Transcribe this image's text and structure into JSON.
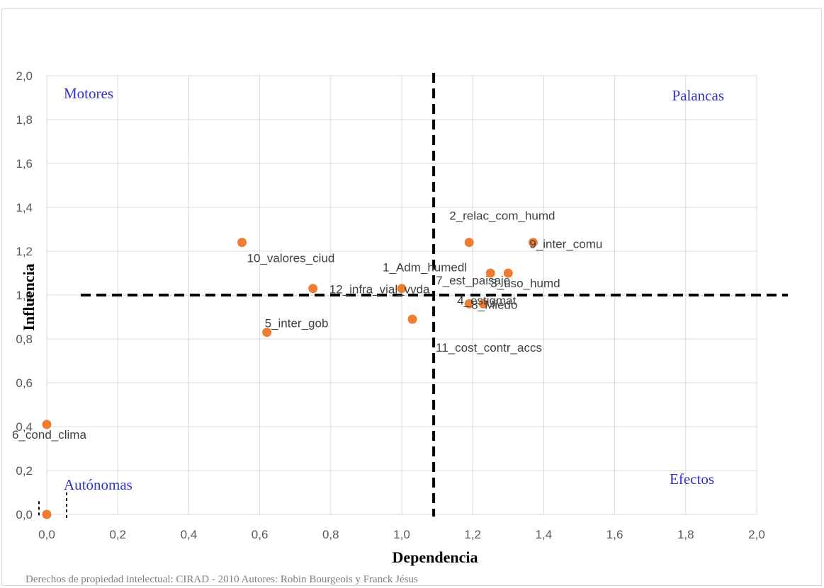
{
  "chart_data": {
    "type": "scatter",
    "xlabel": "Dependencia",
    "ylabel": "Influencia",
    "xlim": [
      0,
      2.0
    ],
    "ylim": [
      0,
      2.0
    ],
    "x_ticks": [
      "0,0",
      "0,2",
      "0,4",
      "0,6",
      "0,8",
      "1,0",
      "1,2",
      "1,4",
      "1,6",
      "1,8",
      "2,0"
    ],
    "y_ticks": [
      "0,0",
      "0,2",
      "0,4",
      "0,6",
      "0,8",
      "1,0",
      "1,2",
      "1,4",
      "1,6",
      "1,8",
      "2,0"
    ],
    "grid": true,
    "marker_color": "#ed7d31",
    "threshold": {
      "x": 1.09,
      "y": 1.0
    },
    "quadrants": {
      "top_left": "Motores",
      "top_right": "Palancas",
      "bottom_left": "Autónomas",
      "bottom_right": "Efectos"
    },
    "points": [
      {
        "label": "1_Adm_humedl",
        "x": 1.0,
        "y": 1.03
      },
      {
        "label": "2_relac_com_humd",
        "x": 1.19,
        "y": 1.24
      },
      {
        "label": "3_uso_humd",
        "x": 1.3,
        "y": 1.1
      },
      {
        "label": "4_estigmat",
        "x": 1.19,
        "y": 0.96
      },
      {
        "label": "5_inter_gob",
        "x": 0.62,
        "y": 0.83
      },
      {
        "label": "6_cond_clima",
        "x": 0.0,
        "y": 0.41
      },
      {
        "label": "7_est_paisaje",
        "x": 1.25,
        "y": 1.1
      },
      {
        "label": "8_Miedo",
        "x": 1.23,
        "y": 0.96
      },
      {
        "label": "9_inter_comu",
        "x": 1.37,
        "y": 1.24
      },
      {
        "label": "10_valores_ciud",
        "x": 0.55,
        "y": 1.24
      },
      {
        "label": "11_cost_contr_accs",
        "x": 1.03,
        "y": 0.89
      },
      {
        "label": "12_infra_vial_vvda",
        "x": 0.75,
        "y": 1.03
      },
      {
        "label": "",
        "x": 0.0,
        "y": 0.0
      }
    ]
  },
  "credit": "Derechos de propiedad intelectual: CIRAD - 2010   Autores: Robin Bourgeois y Franck Jésus"
}
